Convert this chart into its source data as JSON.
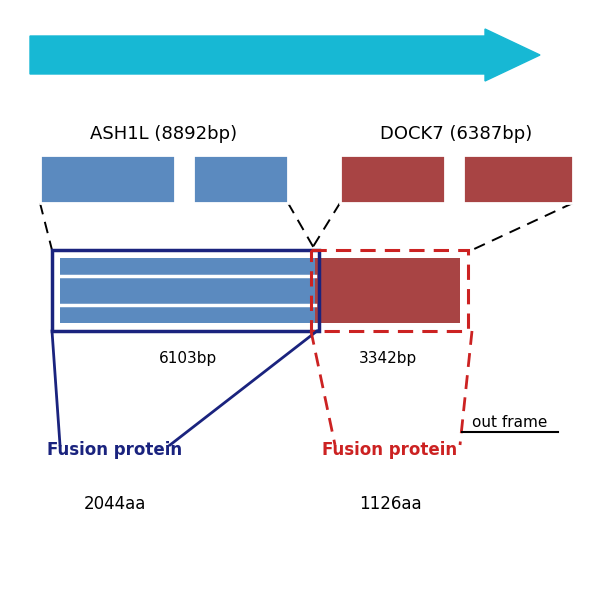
{
  "bg_color": "#ffffff",
  "arrow_color": "#17b8d4",
  "blue_gene_color": "#5b8abf",
  "red_gene_color": "#a84444",
  "fusion_blue_border": "#1a237e",
  "fusion_red_border": "#cc2222",
  "ash1l_label": "ASH1L (8892bp)",
  "dock7_label": "DOCK7 (6387bp)",
  "bp_blue": "6103bp",
  "bp_red": "3342bp",
  "fusion1_label": "Fusion protein",
  "fusion1_aa": "2044aa",
  "fusion2_label": "Fusion protein",
  "fusion2_aa": "1126aa",
  "out_frame_label": "out frame",
  "figsize": [
    6.01,
    6.01
  ],
  "dpi": 100
}
